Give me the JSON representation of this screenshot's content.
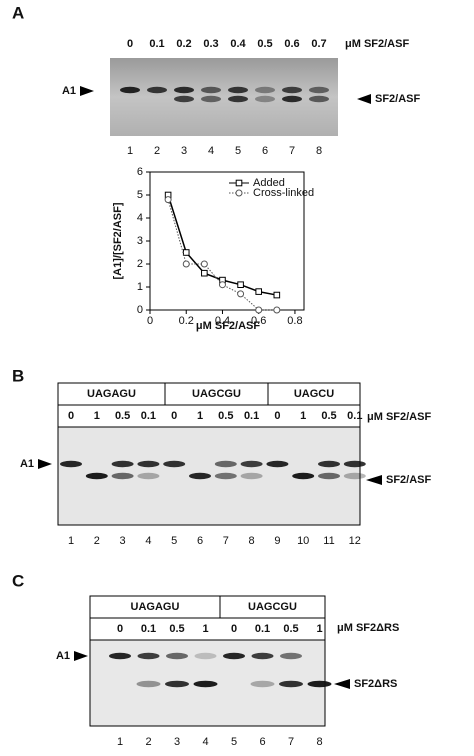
{
  "panel_a": {
    "label": "A",
    "concentrations": [
      "0",
      "0.1",
      "0.2",
      "0.3",
      "0.4",
      "0.5",
      "0.6",
      "0.7"
    ],
    "unit": "μM SF2/ASF",
    "band_labels": [
      "A1",
      "SF2/ASF"
    ],
    "lanes": [
      "1",
      "2",
      "3",
      "4",
      "5",
      "6",
      "7",
      "8"
    ]
  },
  "chart_data": {
    "type": "line",
    "x_label": "μM SF2/ASF",
    "y_label": "[A1]/[SF2/ASF]",
    "x": [
      0.1,
      0.2,
      0.3,
      0.4,
      0.5,
      0.6,
      0.7
    ],
    "series": [
      {
        "name": "Added",
        "color": "#000000",
        "marker": "square",
        "line_style": "solid",
        "values": [
          5.0,
          2.5,
          1.6,
          1.3,
          1.1,
          0.8,
          0.65
        ]
      },
      {
        "name": "Cross-linked",
        "color": "#555555",
        "marker": "circle",
        "line_style": "dotted",
        "values": [
          4.8,
          2.0,
          2.0,
          1.1,
          0.7,
          0.0,
          0.0
        ]
      }
    ],
    "xlim": [
      0,
      0.85
    ],
    "ylim": [
      0,
      6
    ],
    "xticks": [
      0,
      0.2,
      0.4,
      0.6,
      0.8
    ],
    "yticks": [
      0,
      1,
      2,
      3,
      4,
      5,
      6
    ],
    "grid": false,
    "legend": "upper right"
  },
  "panel_b": {
    "label": "B",
    "groups": [
      "UAGAGU",
      "UAGCGU",
      "UAGCU"
    ],
    "concentrations": [
      "0",
      "1",
      "0.5",
      "0.1",
      "0",
      "1",
      "0.5",
      "0.1",
      "0",
      "1",
      "0.5",
      "0.1"
    ],
    "unit": "μM SF2/ASF",
    "band_labels": [
      "A1",
      "SF2/ASF"
    ],
    "lanes": [
      "1",
      "2",
      "3",
      "4",
      "5",
      "6",
      "7",
      "8",
      "9",
      "10",
      "11",
      "12"
    ]
  },
  "panel_c": {
    "label": "C",
    "groups": [
      "UAGAGU",
      "UAGCGU"
    ],
    "concentrations": [
      "0",
      "0.1",
      "0.5",
      "1",
      "0",
      "0.1",
      "0.5",
      "1"
    ],
    "unit": "μM SF2ΔRS",
    "band_labels": [
      "A1",
      "SF2ΔRS"
    ],
    "lanes": [
      "1",
      "2",
      "3",
      "4",
      "5",
      "6",
      "7",
      "8"
    ]
  }
}
